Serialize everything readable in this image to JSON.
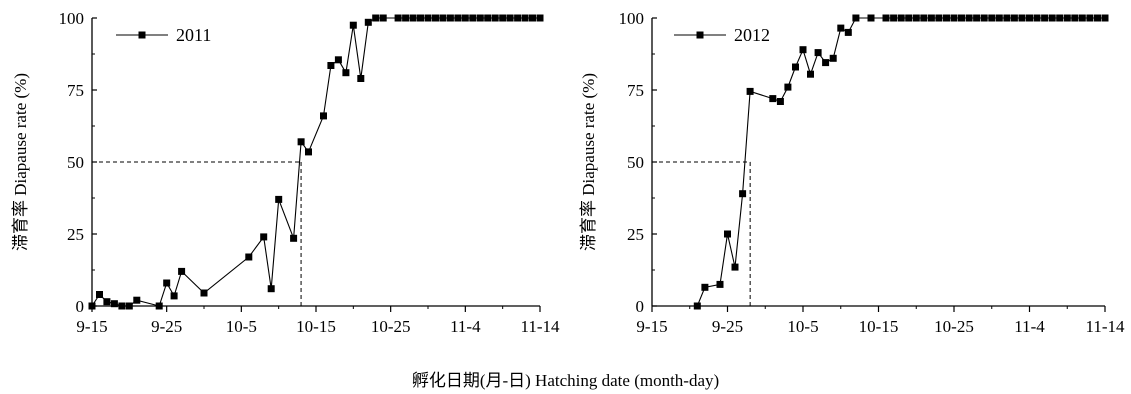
{
  "shared_xlabel": "孵化日期(月-日) Hatching date (month-day)",
  "chart_data": [
    {
      "type": "line",
      "title": "",
      "xlabel": "孵化日期(月-日) Hatching date (month-day)",
      "ylabel": "滞育率 Diapause rate (%)",
      "x_start": "9-15",
      "x_end": "11-14",
      "xticks": [
        "9-15",
        "9-25",
        "10-5",
        "10-15",
        "10-25",
        "11-4",
        "11-14"
      ],
      "yticks": [
        0,
        25,
        50,
        75,
        100
      ],
      "ylim": [
        0,
        100
      ],
      "grid": false,
      "legend": {
        "position": "top-left",
        "marker": "square"
      },
      "reference_line": {
        "y": 50,
        "x": "10-13"
      },
      "series": [
        {
          "name": "2011",
          "x": [
            "9-15",
            "9-16",
            "9-17",
            "9-18",
            "9-19",
            "9-20",
            "9-21",
            "9-24",
            "9-25",
            "9-26",
            "9-27",
            "9-30",
            "10-6",
            "10-8",
            "10-9",
            "10-10",
            "10-12",
            "10-13",
            "10-14",
            "10-16",
            "10-17",
            "10-18",
            "10-19",
            "10-20",
            "10-21",
            "10-22",
            "10-23",
            "10-24",
            "10-26",
            "10-27",
            "10-28",
            "10-29",
            "10-30",
            "10-31",
            "11-1",
            "11-2",
            "11-3",
            "11-4",
            "11-5",
            "11-6",
            "11-7",
            "11-8",
            "11-9",
            "11-10",
            "11-11",
            "11-12",
            "11-13",
            "11-14"
          ],
          "y": [
            0,
            4,
            1.5,
            0.8,
            0,
            0,
            2,
            0,
            8,
            3.5,
            12,
            4.5,
            17,
            24,
            6,
            37,
            23.5,
            57,
            53.5,
            66,
            83.5,
            85.5,
            81,
            97.5,
            79,
            98.5,
            100,
            100,
            100,
            100,
            100,
            100,
            100,
            100,
            100,
            100,
            100,
            100,
            100,
            100,
            100,
            100,
            100,
            100,
            100,
            100,
            100,
            100
          ]
        }
      ]
    },
    {
      "type": "line",
      "title": "",
      "xlabel": "孵化日期(月-日) Hatching date (month-day)",
      "ylabel": "滞育率 Diapause rate (%)",
      "x_start": "9-15",
      "x_end": "11-14",
      "xticks": [
        "9-15",
        "9-25",
        "10-5",
        "10-15",
        "10-25",
        "11-4",
        "11-14"
      ],
      "yticks": [
        0,
        25,
        50,
        75,
        100
      ],
      "ylim": [
        0,
        100
      ],
      "grid": false,
      "legend": {
        "position": "top-left",
        "marker": "square"
      },
      "reference_line": {
        "y": 50,
        "x": "9-28"
      },
      "series": [
        {
          "name": "2012",
          "x": [
            "9-21",
            "9-22",
            "9-24",
            "9-25",
            "9-26",
            "9-27",
            "9-28",
            "10-1",
            "10-2",
            "10-3",
            "10-4",
            "10-5",
            "10-6",
            "10-7",
            "10-8",
            "10-9",
            "10-10",
            "10-11",
            "10-12",
            "10-14",
            "10-16",
            "10-17",
            "10-18",
            "10-19",
            "10-20",
            "10-21",
            "10-22",
            "10-23",
            "10-24",
            "10-25",
            "10-26",
            "10-27",
            "10-28",
            "10-29",
            "10-30",
            "10-31",
            "11-1",
            "11-2",
            "11-3",
            "11-4",
            "11-5",
            "11-6",
            "11-7",
            "11-8",
            "11-9",
            "11-10",
            "11-11",
            "11-12",
            "11-13",
            "11-14"
          ],
          "y": [
            0,
            6.5,
            7.5,
            25,
            13.5,
            39,
            74.5,
            72,
            71,
            76,
            83,
            89,
            80.5,
            88,
            84.5,
            86,
            96.5,
            95,
            100,
            100,
            100,
            100,
            100,
            100,
            100,
            100,
            100,
            100,
            100,
            100,
            100,
            100,
            100,
            100,
            100,
            100,
            100,
            100,
            100,
            100,
            100,
            100,
            100,
            100,
            100,
            100,
            100,
            100,
            100,
            100
          ]
        }
      ]
    }
  ]
}
